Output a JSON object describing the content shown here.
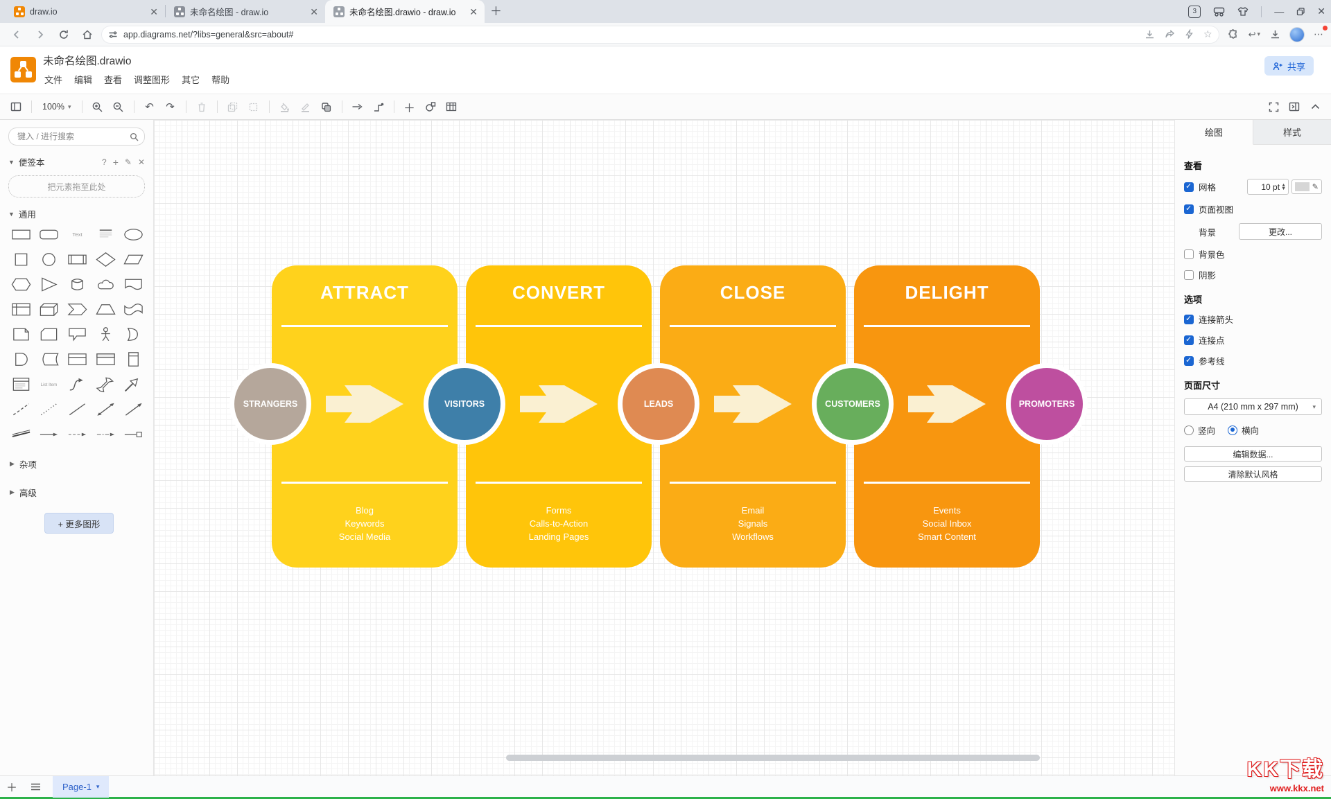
{
  "browser": {
    "tabs": [
      {
        "title": "draw.io"
      },
      {
        "title": "未命名绘图 - draw.io"
      },
      {
        "title": "未命名绘图.drawio - draw.io"
      }
    ],
    "tab_count_badge": "3",
    "url": "app.diagrams.net/?libs=general&src=about#",
    "icon_names": [
      "back-icon",
      "forward-icon",
      "reload-icon",
      "home-icon",
      "site-info-icon",
      "save-page-icon",
      "share-icon",
      "lightning-icon",
      "star-icon",
      "extensions-icon",
      "history-icon",
      "downloads-icon",
      "avatar",
      "menu-icon",
      "tab-count-icon",
      "reader-icon",
      "skin-icon",
      "minimize-icon",
      "restore-icon",
      "close-icon"
    ]
  },
  "app": {
    "title": "未命名绘图.drawio",
    "menus": [
      "文件",
      "编辑",
      "查看",
      "调整图形",
      "其它",
      "帮助"
    ],
    "share_label": "共享",
    "zoom_level": "100%",
    "toolbar_icon_names": [
      "sidebar-toggle-icon",
      "zoom-in-icon",
      "zoom-out-icon",
      "undo-icon",
      "redo-icon",
      "delete-icon",
      "copy-icon",
      "paste-icon",
      "fill-color-icon",
      "line-style-icon",
      "shadow-icon",
      "connection-icon",
      "waypoints-icon",
      "insert-icon",
      "insert-shape-icon",
      "table-icon",
      "fullscreen-icon",
      "format-panel-icon",
      "collapse-icon"
    ]
  },
  "sidebar": {
    "search_placeholder": "键入 / 进行搜索",
    "scratchpad_label": "便签本",
    "drop_hint": "把元素拖至此处",
    "general_label": "通用",
    "misc_label": "杂项",
    "advanced_label": "高级",
    "more_shapes_label": "+ 更多图形",
    "shapes": [
      "rectangle",
      "rounded-rectangle",
      "text",
      "textbox",
      "ellipse",
      "square",
      "circle",
      "process",
      "diamond",
      "parallelogram",
      "hexagon",
      "triangle",
      "cylinder",
      "cloud",
      "document",
      "internal-storage",
      "cube",
      "step",
      "trapezoid",
      "tape",
      "note",
      "card",
      "callout",
      "actor",
      "or",
      "and",
      "data-storage",
      "container",
      "container-title",
      "vertical-container",
      "list",
      "list-item",
      "curve",
      "bidirectional-arrow",
      "arrow",
      "dashed-line",
      "dotted-line",
      "line",
      "bidirectional-connector",
      "directional-connector",
      "link",
      "arrow-link",
      "dashed-arrow",
      "dashed-arrow-2",
      "box-arrow"
    ]
  },
  "diagram": {
    "stages": [
      {
        "title": "ATTRACT",
        "card_color": "#FFD21C",
        "items": [
          "Blog",
          "Keywords",
          "Social Media"
        ]
      },
      {
        "title": "CONVERT",
        "card_color": "#FFC50A",
        "items": [
          "Forms",
          "Calls-to-Action",
          "Landing Pages"
        ]
      },
      {
        "title": "CLOSE",
        "card_color": "#FBAC15",
        "items": [
          "Email",
          "Signals",
          "Workflows"
        ]
      },
      {
        "title": "DELIGHT",
        "card_color": "#F8960F",
        "items": [
          "Events",
          "Social Inbox",
          "Smart Content"
        ]
      }
    ],
    "circles": [
      {
        "label": "STRANGERS",
        "color": "#B5A79B"
      },
      {
        "label": "VISITORS",
        "color": "#3E7FA9"
      },
      {
        "label": "LEADS",
        "color": "#DF8A52"
      },
      {
        "label": "CUSTOMERS",
        "color": "#68AE5C"
      },
      {
        "label": "PROMOTERS",
        "color": "#BE4F9F"
      }
    ],
    "arrow_color": "#FAF0D2"
  },
  "format_panel": {
    "tabs": [
      "绘图",
      "样式"
    ],
    "view_section": "查看",
    "grid_label": "网格",
    "grid_size": "10 pt",
    "page_view_label": "页面视图",
    "background_label": "背景",
    "change_button": "更改...",
    "background_color_label": "背景色",
    "shadow_label": "阴影",
    "options_section": "选项",
    "connection_arrows_label": "连接箭头",
    "connection_points_label": "连接点",
    "guides_label": "参考线",
    "page_size_section": "页面尺寸",
    "page_size_value": "A4 (210 mm x 297 mm)",
    "portrait_label": "竖向",
    "landscape_label": "横向",
    "edit_data_button": "编辑数据...",
    "clear_default_style_button": "清除默认风格"
  },
  "footer": {
    "page_tab": "Page-1"
  },
  "watermark": {
    "title": "KK下载",
    "url": "www.kkx.net"
  }
}
